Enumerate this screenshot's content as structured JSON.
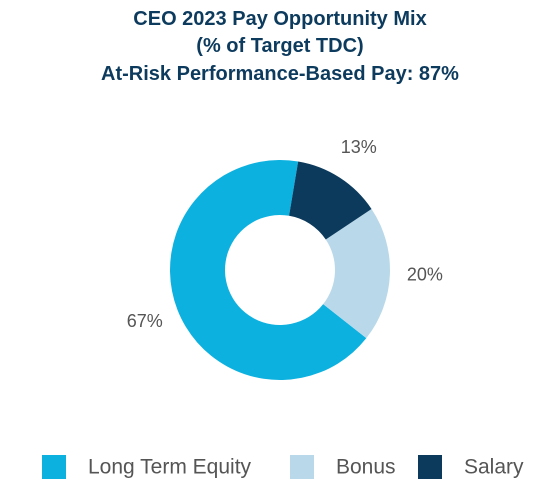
{
  "chart_data": {
    "type": "donut",
    "title": [
      "CEO 2023 Pay Opportunity Mix",
      "(% of Target TDC)",
      "At-Risk Performance-Based Pay: 87%"
    ],
    "categories": [
      "Long Term Equity",
      "Bonus",
      "Salary"
    ],
    "values": [
      67,
      20,
      13
    ],
    "value_labels": [
      "67%",
      "20%",
      "13%"
    ],
    "colors": [
      "#0db1e0",
      "#b9d9ea",
      "#0b3a5c"
    ]
  }
}
